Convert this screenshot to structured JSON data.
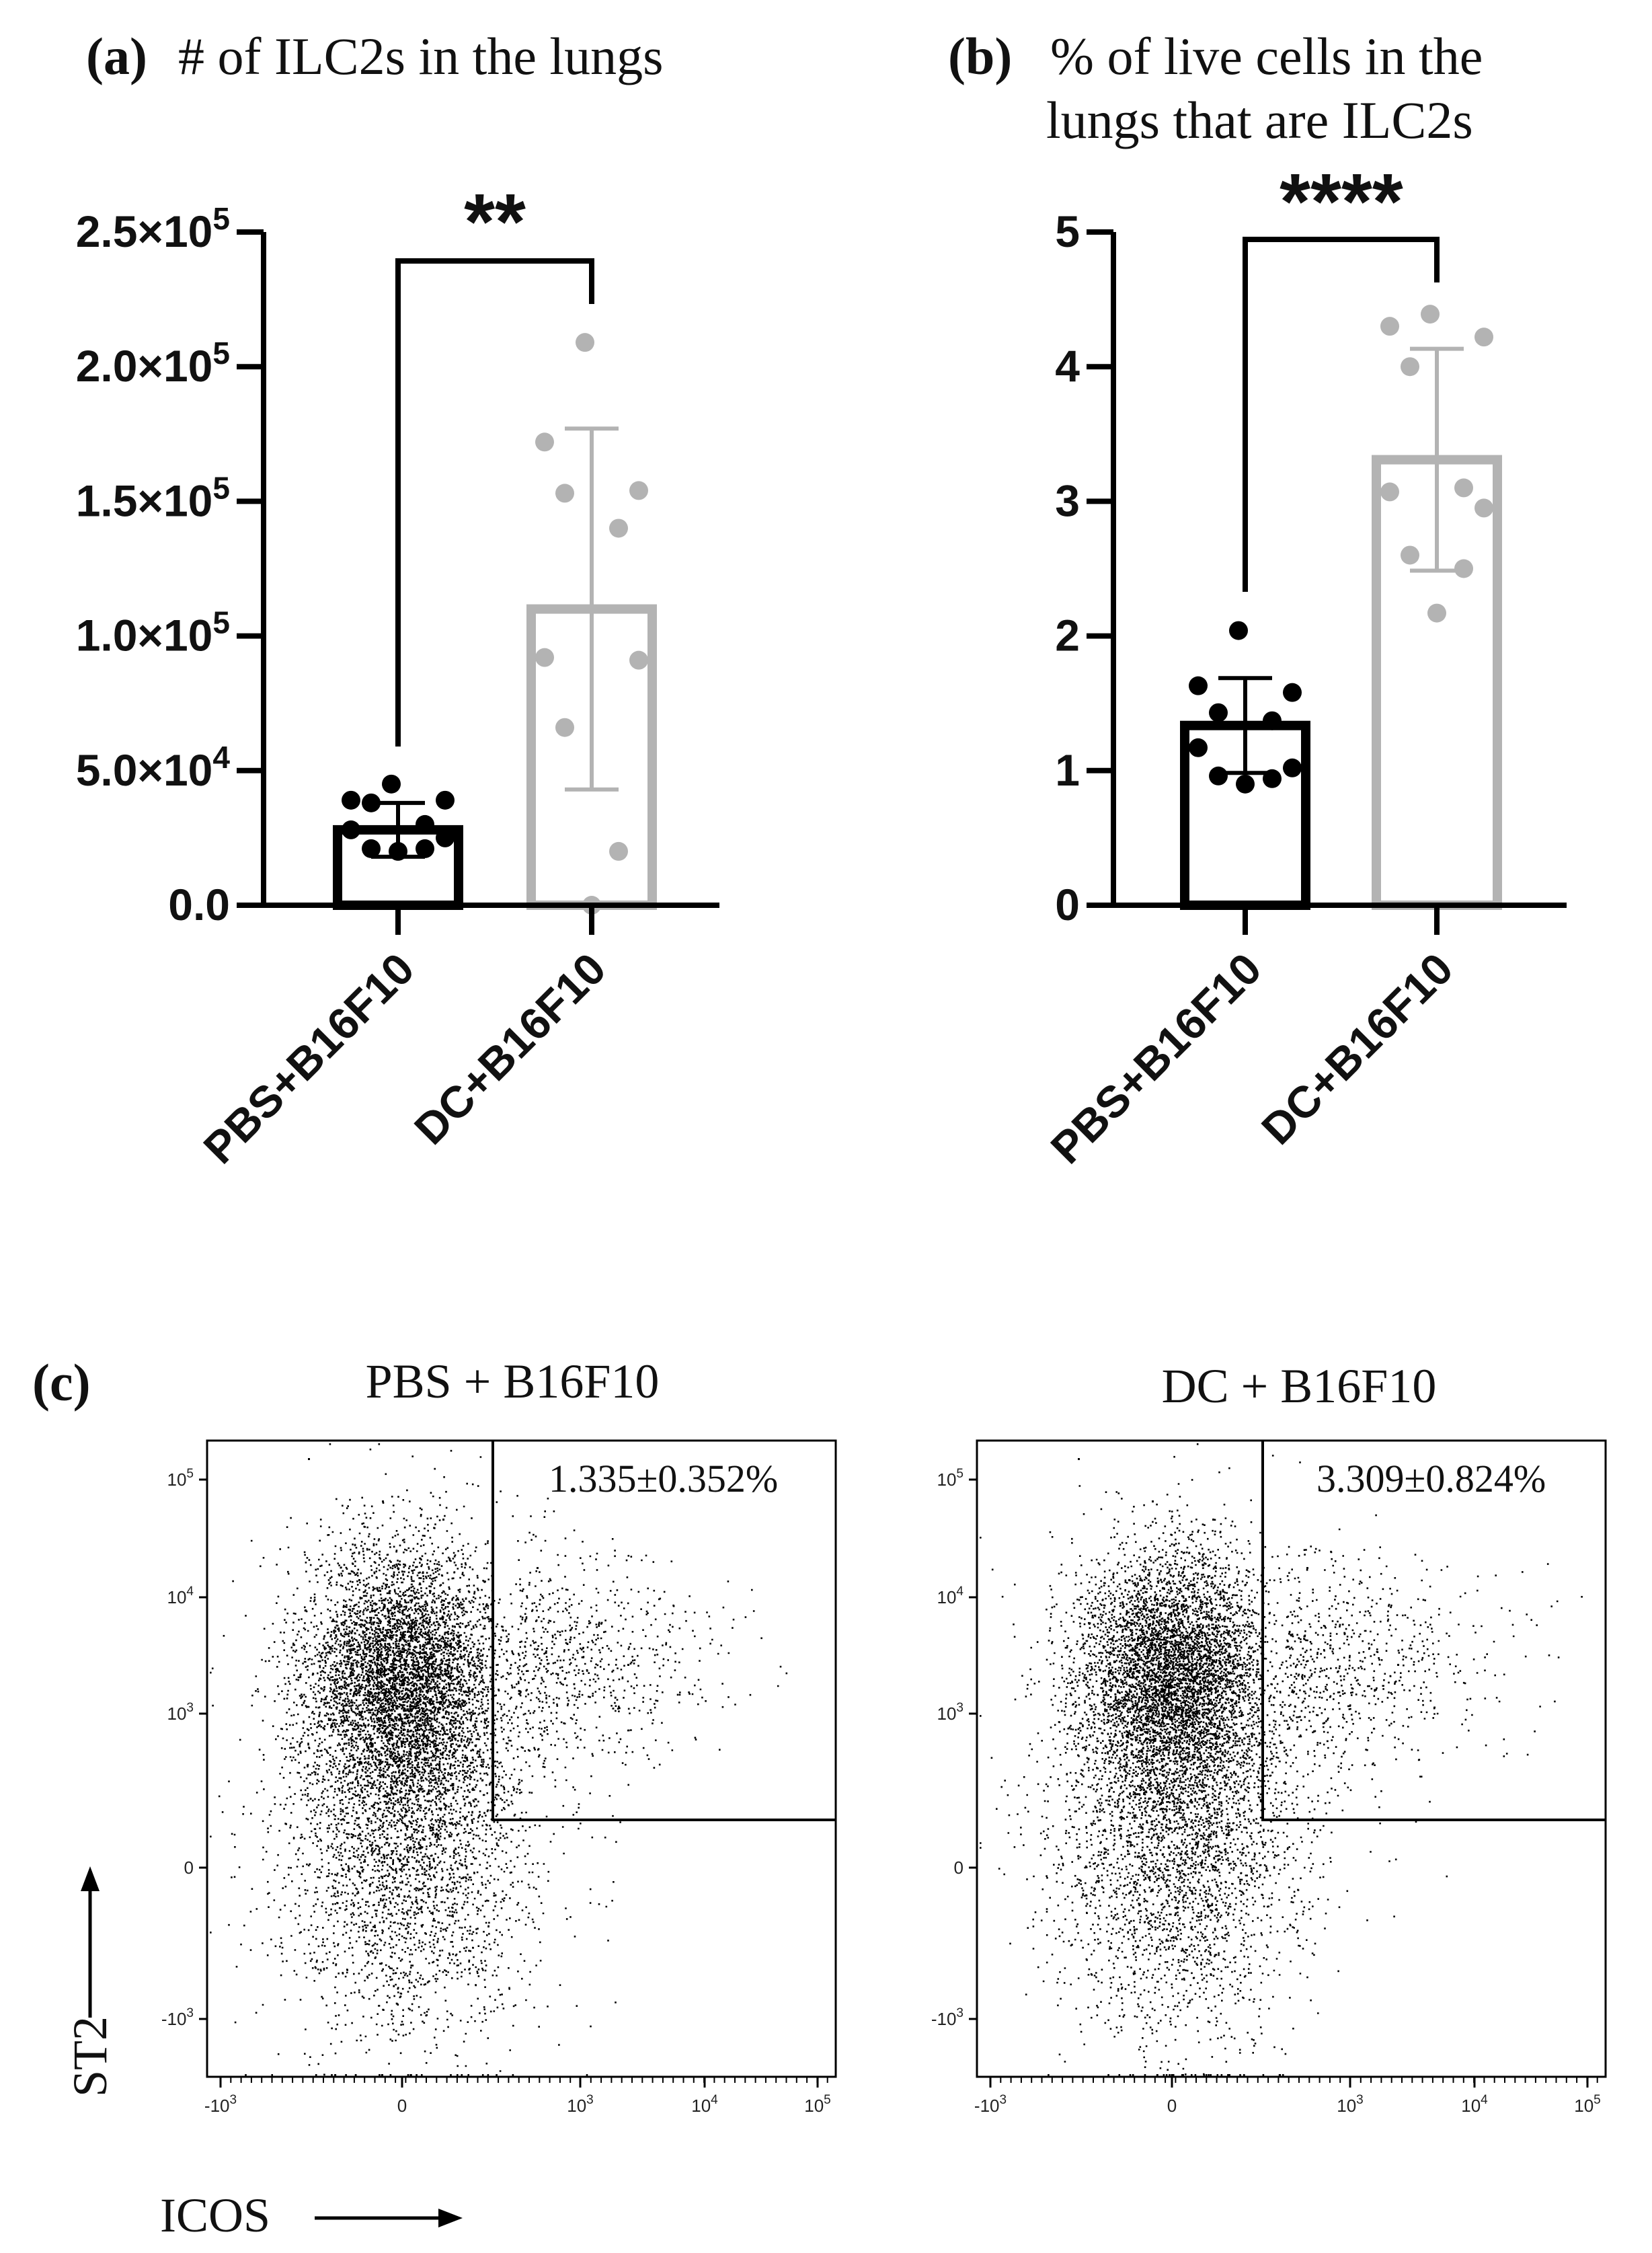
{
  "chart_data": [
    {
      "id": "a",
      "type": "bar",
      "panel_label": "(a)",
      "title": "# of ILC2s in the lungs",
      "categories": [
        "PBS+B16F10",
        "DC+B16F10"
      ],
      "values": [
        28000,
        110000
      ],
      "sd": [
        10000,
        67000
      ],
      "points": [
        [
          45000,
          39000,
          39000,
          38000,
          30000,
          28000,
          25000,
          21000,
          21000,
          20000
        ],
        [
          209000,
          172000,
          154000,
          153000,
          140000,
          92000,
          91000,
          66000,
          20000,
          0
        ]
      ],
      "colors": [
        "#000000",
        "#b3b3b3"
      ],
      "ylim": [
        0,
        250000
      ],
      "yticks": [
        0,
        50000,
        100000,
        150000,
        200000,
        250000
      ],
      "ytick_labels": [
        {
          "mant": "0.0",
          "exp": ""
        },
        {
          "mant": "5.0×10",
          "exp": "4"
        },
        {
          "mant": "1.0×10",
          "exp": "5"
        },
        {
          "mant": "1.5×10",
          "exp": "5"
        },
        {
          "mant": "2.0×10",
          "exp": "5"
        },
        {
          "mant": "2.5×10",
          "exp": "5"
        }
      ],
      "significance": "**",
      "xlabel": "",
      "ylabel": ""
    },
    {
      "id": "b",
      "type": "bar",
      "panel_label": "(b)",
      "title": "% of live cells in the lungs that are ILC2s",
      "title_lines": [
        "% of live cells in the",
        "lungs that are ILC2s"
      ],
      "categories": [
        "PBS+B16F10",
        "DC+B16F10"
      ],
      "values": [
        1.335,
        3.309
      ],
      "sd": [
        0.352,
        0.824
      ],
      "points": [
        [
          2.04,
          1.63,
          1.58,
          1.43,
          1.37,
          1.17,
          1.02,
          0.96,
          0.94,
          0.9
        ],
        [
          4.39,
          4.3,
          4.22,
          4.0,
          3.1,
          3.07,
          2.95,
          2.6,
          2.5,
          2.17
        ]
      ],
      "colors": [
        "#000000",
        "#b3b3b3"
      ],
      "ylim": [
        0,
        5
      ],
      "yticks": [
        0,
        1,
        2,
        3,
        4,
        5
      ],
      "ytick_labels": [
        {
          "mant": "0",
          "exp": ""
        },
        {
          "mant": "1",
          "exp": ""
        },
        {
          "mant": "2",
          "exp": ""
        },
        {
          "mant": "3",
          "exp": ""
        },
        {
          "mant": "4",
          "exp": ""
        },
        {
          "mant": "5",
          "exp": ""
        }
      ],
      "significance": "****",
      "xlabel": "",
      "ylabel": ""
    },
    {
      "id": "c",
      "type": "scatter",
      "panel_label": "(c)",
      "xlabel": "ICOS",
      "ylabel": "ST2",
      "xticks": [
        {
          "base": "-10",
          "exp": "3"
        },
        {
          "base": "0",
          "exp": ""
        },
        {
          "base": "10",
          "exp": "3"
        },
        {
          "base": "10",
          "exp": "4"
        },
        {
          "base": "10",
          "exp": "5"
        }
      ],
      "yticks": [
        {
          "base": "10",
          "exp": "5"
        },
        {
          "base": "10",
          "exp": "4"
        },
        {
          "base": "10",
          "exp": "3"
        },
        {
          "base": "0",
          "exp": ""
        },
        {
          "base": "-10",
          "exp": "3"
        }
      ],
      "plots": [
        {
          "title": "PBS + B16F10",
          "gate_label": "1.335±0.352%"
        },
        {
          "title": "DC + B16F10",
          "gate_label": "3.309±0.824%"
        }
      ]
    }
  ]
}
